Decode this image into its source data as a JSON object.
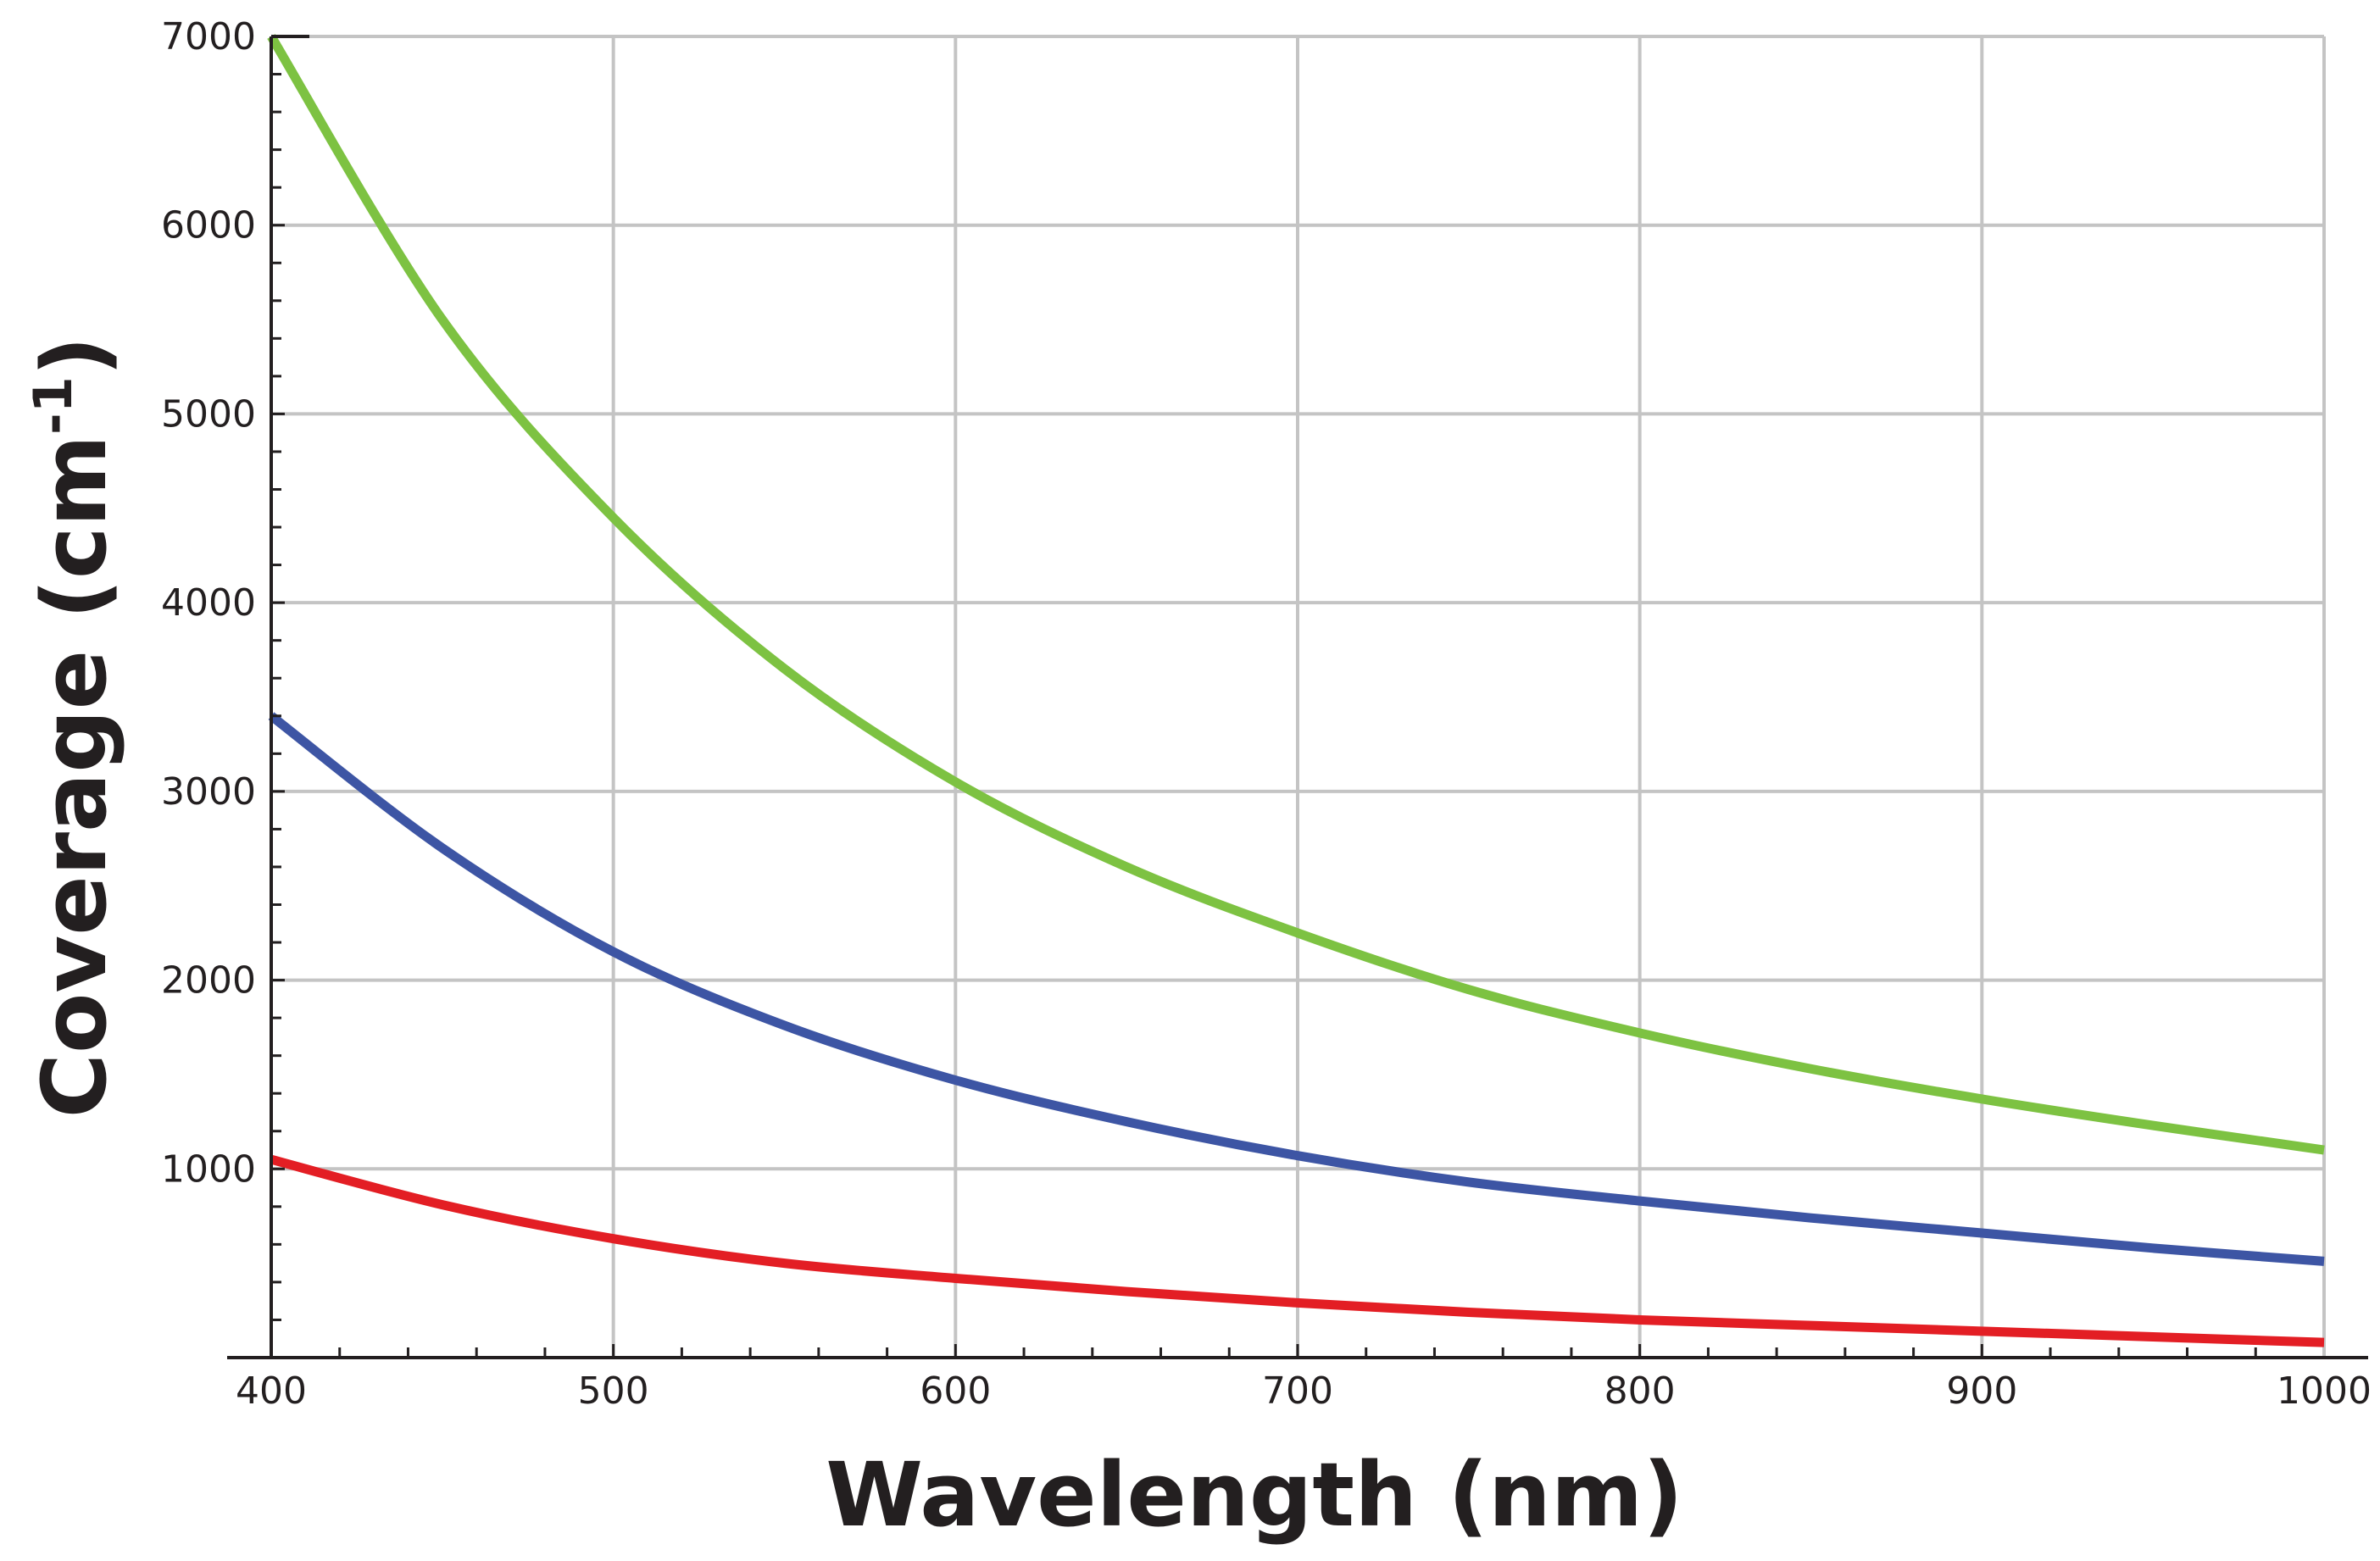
{
  "chart_data": {
    "type": "line",
    "xlabel": "Wavelength (nm)",
    "ylabel": "Coverage (cm",
    "ylabel_superscript": "-1",
    "ylabel_close": ")",
    "xlim": [
      400,
      1000
    ],
    "ylim": [
      0,
      7000
    ],
    "x_ticks": [
      400,
      500,
      600,
      700,
      800,
      900,
      1000
    ],
    "x_tick_labels": [
      "400",
      "500",
      "600",
      "700",
      "800",
      "900",
      "1000"
    ],
    "y_ticks": [
      1000,
      2000,
      3000,
      4000,
      5000,
      6000,
      7000
    ],
    "y_tick_labels": [
      "1000",
      "2000",
      "3000",
      "4000",
      "5000",
      "6000",
      "7000"
    ],
    "grid": true,
    "legend": null,
    "x": [
      400,
      450,
      500,
      550,
      600,
      650,
      700,
      750,
      800,
      850,
      900,
      950,
      1000
    ],
    "series": [
      {
        "name": "green",
        "color": "#7dc242",
        "values": [
          7000,
          5500,
          4450,
          3650,
          3050,
          2600,
          2250,
          1950,
          1720,
          1530,
          1370,
          1230,
          1100
        ]
      },
      {
        "name": "blue",
        "color": "#3d55a4",
        "values": [
          3400,
          2700,
          2150,
          1760,
          1470,
          1250,
          1070,
          930,
          830,
          740,
          660,
          580,
          510
        ]
      },
      {
        "name": "red",
        "color": "#e31e24",
        "values": [
          1050,
          810,
          630,
          500,
          420,
          350,
          290,
          240,
          200,
          170,
          140,
          110,
          80
        ]
      }
    ]
  }
}
